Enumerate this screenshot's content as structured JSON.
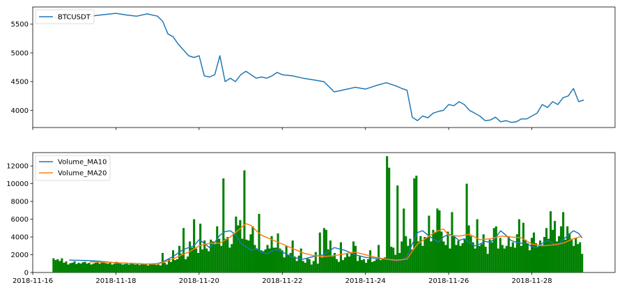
{
  "chart_data": [
    {
      "type": "line",
      "legend": "top-left",
      "xlim": [
        "2018-11-16",
        "2018-11-30"
      ],
      "ylim": [
        3700,
        5800
      ],
      "yticks": [
        4000,
        4500,
        5000,
        5500
      ],
      "grid": false,
      "series": [
        {
          "name": "BTCUSDT",
          "color": "#1f77b4",
          "x": [
            "2018-11-16T12:00",
            "2018-11-16T18:00",
            "2018-11-17T00:00",
            "2018-11-17T06:00",
            "2018-11-17T12:00",
            "2018-11-17T18:00",
            "2018-11-18T00:00",
            "2018-11-18T06:00",
            "2018-11-18T12:00",
            "2018-11-18T18:00",
            "2018-11-19T00:00",
            "2018-11-19T03:00",
            "2018-11-19T06:00",
            "2018-11-19T09:00",
            "2018-11-19T12:00",
            "2018-11-19T15:00",
            "2018-11-19T18:00",
            "2018-11-19T21:00",
            "2018-11-20T00:00",
            "2018-11-20T03:00",
            "2018-11-20T06:00",
            "2018-11-20T09:00",
            "2018-11-20T12:00",
            "2018-11-20T15:00",
            "2018-11-20T18:00",
            "2018-11-20T21:00",
            "2018-11-21T00:00",
            "2018-11-21T03:00",
            "2018-11-21T06:00",
            "2018-11-21T09:00",
            "2018-11-21T12:00",
            "2018-11-21T15:00",
            "2018-11-21T18:00",
            "2018-11-21T21:00",
            "2018-11-22T00:00",
            "2018-11-22T06:00",
            "2018-11-22T12:00",
            "2018-11-22T18:00",
            "2018-11-23T00:00",
            "2018-11-23T06:00",
            "2018-11-23T12:00",
            "2018-11-23T18:00",
            "2018-11-24T00:00",
            "2018-11-24T06:00",
            "2018-11-24T12:00",
            "2018-11-24T18:00",
            "2018-11-24T21:00",
            "2018-11-25T00:00",
            "2018-11-25T03:00",
            "2018-11-25T06:00",
            "2018-11-25T09:00",
            "2018-11-25T12:00",
            "2018-11-25T15:00",
            "2018-11-25T18:00",
            "2018-11-25T21:00",
            "2018-11-26T00:00",
            "2018-11-26T03:00",
            "2018-11-26T06:00",
            "2018-11-26T09:00",
            "2018-11-26T12:00",
            "2018-11-26T15:00",
            "2018-11-26T18:00",
            "2018-11-26T21:00",
            "2018-11-27T00:00",
            "2018-11-27T03:00",
            "2018-11-27T06:00",
            "2018-11-27T09:00",
            "2018-11-27T12:00",
            "2018-11-27T15:00",
            "2018-11-27T18:00",
            "2018-11-27T21:00",
            "2018-11-28T00:00",
            "2018-11-28T03:00",
            "2018-11-28T06:00",
            "2018-11-28T09:00",
            "2018-11-28T12:00",
            "2018-11-28T15:00",
            "2018-11-28T18:00",
            "2018-11-28T21:00",
            "2018-11-29T00:00",
            "2018-11-29T03:00",
            "2018-11-29T06:00"
          ],
          "y": [
            5620,
            5600,
            5630,
            5610,
            5650,
            5670,
            5690,
            5660,
            5640,
            5680,
            5640,
            5550,
            5330,
            5280,
            5150,
            5050,
            4950,
            4920,
            4950,
            4600,
            4580,
            4620,
            4950,
            4500,
            4560,
            4500,
            4620,
            4680,
            4620,
            4560,
            4580,
            4560,
            4600,
            4660,
            4620,
            4600,
            4560,
            4530,
            4500,
            4320,
            4360,
            4400,
            4370,
            4430,
            4480,
            4420,
            4380,
            4350,
            3880,
            3820,
            3900,
            3870,
            3950,
            3980,
            4000,
            4100,
            4080,
            4150,
            4100,
            4000,
            3950,
            3900,
            3820,
            3830,
            3880,
            3800,
            3820,
            3790,
            3800,
            3850,
            3850,
            3900,
            3950,
            4100,
            4050,
            4150,
            4100,
            4220,
            4250,
            4380,
            4150,
            4180
          ]
        }
      ]
    },
    {
      "type": "bar",
      "legend": "top-left",
      "xlim": [
        "2018-11-16",
        "2018-11-30"
      ],
      "ylim": [
        0,
        13500
      ],
      "yticks": [
        0,
        2000,
        4000,
        6000,
        8000,
        10000,
        12000
      ],
      "xticks": [
        "2018-11-16",
        "2018-11-18",
        "2018-11-20",
        "2018-11-22",
        "2018-11-24",
        "2018-11-26",
        "2018-11-28"
      ],
      "grid": false,
      "bar_color": "#008000",
      "bars_start": "2018-11-16T12:00",
      "bars_end": "2018-11-29T05:00",
      "bar_values": [
        1600,
        1400,
        1500,
        1300,
        1600,
        1100,
        1250,
        900,
        1050,
        1100,
        1250,
        950,
        1100,
        1000,
        1150,
        1200,
        1000,
        1100,
        900,
        1000,
        1100,
        1300,
        1000,
        1200,
        1100,
        1050,
        1000,
        1150,
        900,
        1000,
        1200,
        1050,
        1000,
        900,
        950,
        1000,
        900,
        1100,
        950,
        900,
        1000,
        850,
        950,
        900,
        1000,
        800,
        950,
        900,
        1000,
        850,
        900,
        800,
        2200,
        1100,
        900,
        1500,
        1200,
        2500,
        1400,
        1500,
        3000,
        2100,
        5000,
        1500,
        1800,
        3500,
        2800,
        6000,
        2700,
        2200,
        5500,
        2600,
        3600,
        2700,
        2400,
        3700,
        3500,
        3200,
        5200,
        3800,
        3000,
        10600,
        3800,
        4000,
        2800,
        3200,
        4400,
        6300,
        5300,
        5900,
        3800,
        11500,
        3700,
        3600,
        4300,
        5200,
        3100,
        2600,
        6600,
        2500,
        2400,
        2600,
        3100,
        2700,
        4100,
        2800,
        2800,
        4400,
        2700,
        2500,
        1700,
        3000,
        2000,
        2200,
        3600,
        1800,
        1300,
        1900,
        2700,
        1300,
        1100,
        1600,
        1500,
        900,
        1300,
        2300,
        1000,
        4500,
        1700,
        5000,
        4800,
        2600,
        3600,
        1800,
        2200,
        1500,
        1200,
        3400,
        1400,
        1700,
        2200,
        1800,
        2300,
        3500,
        3000,
        1300,
        1800,
        1400,
        1500,
        1100,
        1500,
        2500,
        1200,
        1300,
        1500,
        3100,
        1400,
        1500,
        1700,
        13100,
        11800,
        2900,
        2800,
        2000,
        9800,
        2200,
        3500,
        7200,
        4100,
        3000,
        3800,
        2600,
        10600,
        10900,
        3500,
        4100,
        3000,
        4000,
        3900,
        6400,
        3500,
        4800,
        4500,
        7200,
        7000,
        4600,
        3500,
        3100,
        4600,
        2700,
        6800,
        4100,
        3100,
        3600,
        3000,
        3300,
        3800,
        10000,
        5300,
        4100,
        3400,
        2700,
        6000,
        3000,
        3200,
        4300,
        2900,
        2100,
        3700,
        3400,
        5000,
        5200,
        2700,
        3900,
        3100,
        2700,
        3000,
        4100,
        2900,
        3400,
        2800,
        4300,
        6000,
        3000,
        5600,
        3700,
        3300,
        2500,
        3900,
        4500,
        3300,
        2900,
        3600,
        3100,
        4000,
        5000,
        3800,
        6900,
        4800,
        5800,
        3500,
        4100,
        5200,
        6800,
        3700,
        5200,
        4400,
        3800,
        3000,
        3900,
        3200,
        3400,
        2100
      ],
      "series": [
        {
          "name": "Volume_MA10",
          "color": "#1f77b4",
          "x": [
            "2018-11-16T21:00",
            "2018-11-17T06:00",
            "2018-11-17T12:00",
            "2018-11-17T18:00",
            "2018-11-18T00:00",
            "2018-11-18T06:00",
            "2018-11-18T12:00",
            "2018-11-18T18:00",
            "2018-11-19T00:00",
            "2018-11-19T03:00",
            "2018-11-19T06:00",
            "2018-11-19T09:00",
            "2018-11-19T12:00",
            "2018-11-19T15:00",
            "2018-11-19T18:00",
            "2018-11-19T21:00",
            "2018-11-20T00:00",
            "2018-11-20T03:00",
            "2018-11-20T06:00",
            "2018-11-20T09:00",
            "2018-11-20T12:00",
            "2018-11-20T15:00",
            "2018-11-20T18:00",
            "2018-11-20T21:00",
            "2018-11-21T00:00",
            "2018-11-21T03:00",
            "2018-11-21T06:00",
            "2018-11-21T09:00",
            "2018-11-21T12:00",
            "2018-11-21T15:00",
            "2018-11-21T18:00",
            "2018-11-21T21:00",
            "2018-11-22T00:00",
            "2018-11-22T06:00",
            "2018-11-22T12:00",
            "2018-11-22T18:00",
            "2018-11-23T00:00",
            "2018-11-23T06:00",
            "2018-11-23T12:00",
            "2018-11-23T18:00",
            "2018-11-24T00:00",
            "2018-11-24T06:00",
            "2018-11-24T12:00",
            "2018-11-24T18:00",
            "2018-11-24T21:00",
            "2018-11-25T00:00",
            "2018-11-25T03:00",
            "2018-11-25T06:00",
            "2018-11-25T09:00",
            "2018-11-25T12:00",
            "2018-11-25T15:00",
            "2018-11-25T18:00",
            "2018-11-25T21:00",
            "2018-11-26T00:00",
            "2018-11-26T03:00",
            "2018-11-26T06:00",
            "2018-11-26T09:00",
            "2018-11-26T12:00",
            "2018-11-26T15:00",
            "2018-11-26T18:00",
            "2018-11-26T21:00",
            "2018-11-27T00:00",
            "2018-11-27T03:00",
            "2018-11-27T06:00",
            "2018-11-27T09:00",
            "2018-11-27T12:00",
            "2018-11-27T15:00",
            "2018-11-27T18:00",
            "2018-11-27T21:00",
            "2018-11-28T00:00",
            "2018-11-28T03:00",
            "2018-11-28T06:00",
            "2018-11-28T09:00",
            "2018-11-28T12:00",
            "2018-11-28T15:00",
            "2018-11-28T18:00",
            "2018-11-28T21:00",
            "2018-11-29T00:00",
            "2018-11-29T03:00",
            "2018-11-29T05:00"
          ],
          "y": [
            1400,
            1350,
            1300,
            1200,
            1100,
            1050,
            1000,
            950,
            1000,
            1200,
            1500,
            1800,
            2200,
            2600,
            2800,
            3000,
            3700,
            3300,
            2800,
            3400,
            4200,
            4600,
            4700,
            4300,
            3300,
            2900,
            2500,
            2700,
            2300,
            2100,
            2400,
            2600,
            2300,
            1700,
            1500,
            1800,
            2000,
            2800,
            2500,
            2000,
            1700,
            1600,
            1500,
            1300,
            1400,
            1800,
            3200,
            4500,
            4700,
            4200,
            3800,
            3400,
            4000,
            4300,
            4100,
            3600,
            3800,
            3400,
            3000,
            3200,
            3500,
            3400,
            3900,
            4700,
            4200,
            3600,
            3400,
            3300,
            3300,
            2900,
            2800,
            3300,
            3600,
            3300,
            3000,
            3700,
            4200,
            4700,
            4400,
            3900
          ]
        },
        {
          "name": "Volume_MA20",
          "color": "#ff7f0e",
          "x": [
            "2018-11-17T09:00",
            "2018-11-17T18:00",
            "2018-11-18T00:00",
            "2018-11-18T06:00",
            "2018-11-18T12:00",
            "2018-11-18T18:00",
            "2018-11-19T00:00",
            "2018-11-19T06:00",
            "2018-11-19T12:00",
            "2018-11-19T18:00",
            "2018-11-20T00:00",
            "2018-11-20T06:00",
            "2018-11-20T12:00",
            "2018-11-20T18:00",
            "2018-11-21T00:00",
            "2018-11-21T03:00",
            "2018-11-21T06:00",
            "2018-11-21T09:00",
            "2018-11-21T12:00",
            "2018-11-21T18:00",
            "2018-11-22T00:00",
            "2018-11-22T06:00",
            "2018-11-22T12:00",
            "2018-11-22T18:00",
            "2018-11-23T00:00",
            "2018-11-23T06:00",
            "2018-11-23T12:00",
            "2018-11-23T18:00",
            "2018-11-24T00:00",
            "2018-11-24T06:00",
            "2018-11-24T12:00",
            "2018-11-24T18:00",
            "2018-11-25T00:00",
            "2018-11-25T03:00",
            "2018-11-25T06:00",
            "2018-11-25T09:00",
            "2018-11-25T12:00",
            "2018-11-25T15:00",
            "2018-11-25T18:00",
            "2018-11-25T21:00",
            "2018-11-26T00:00",
            "2018-11-26T06:00",
            "2018-11-26T12:00",
            "2018-11-26T18:00",
            "2018-11-27T00:00",
            "2018-11-27T06:00",
            "2018-11-27T12:00",
            "2018-11-27T18:00",
            "2018-11-28T00:00",
            "2018-11-28T06:00",
            "2018-11-28T12:00",
            "2018-11-28T18:00",
            "2018-11-29T00:00",
            "2018-11-29T05:00"
          ],
          "y": [
            1200,
            1150,
            1100,
            1050,
            1000,
            950,
            950,
            1300,
            1800,
            2300,
            3000,
            3300,
            3300,
            4000,
            5000,
            5500,
            5300,
            4700,
            4200,
            3700,
            3200,
            2700,
            2200,
            1900,
            1800,
            1900,
            2100,
            2300,
            2000,
            1700,
            1500,
            1400,
            1500,
            2400,
            3200,
            3600,
            4000,
            4400,
            4700,
            4900,
            4200,
            4100,
            4300,
            3700,
            3800,
            4100,
            4000,
            3900,
            3200,
            3000,
            3100,
            3300,
            3800,
            4100
          ]
        }
      ]
    }
  ]
}
